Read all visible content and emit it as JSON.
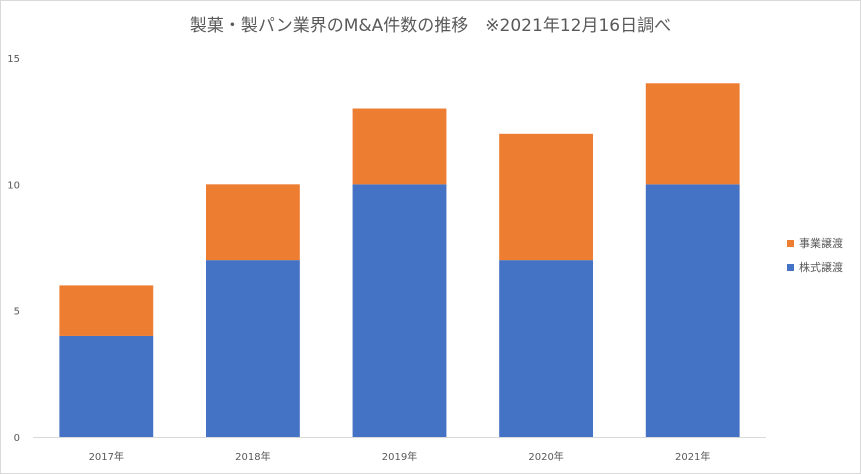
{
  "chart_data": {
    "type": "bar",
    "stacked": true,
    "title": "製菓・製パン業界のM&A件数の推移　※2021年12月16日調べ",
    "categories": [
      "2017年",
      "2018年",
      "2019年",
      "2020年",
      "2021年"
    ],
    "series": [
      {
        "name": "株式譲渡",
        "values": [
          4,
          7,
          10,
          7,
          10
        ],
        "color": "#4472c4"
      },
      {
        "name": "事業譲渡",
        "values": [
          2,
          3,
          3,
          5,
          4
        ],
        "color": "#ed7d31"
      }
    ],
    "ylim": [
      0,
      15
    ],
    "yticks": [
      0,
      5,
      10,
      15
    ],
    "xlabel": "",
    "ylabel": "",
    "legend": "right",
    "grid": false
  }
}
